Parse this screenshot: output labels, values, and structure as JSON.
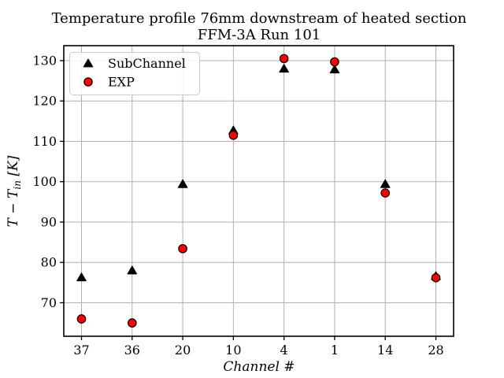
{
  "chart_data": {
    "type": "scatter",
    "title": "Temperature profile 76mm downstream of heated section",
    "subtitle": "FFM-3A Run 101",
    "xlabel": "Channel #",
    "ylabel": "T − T_in [K]",
    "ylabel_parts": {
      "main": "T − T",
      "sub": "in",
      "unit": " [K]"
    },
    "categories": [
      "37",
      "36",
      "20",
      "10",
      "4",
      "1",
      "14",
      "28"
    ],
    "series": [
      {
        "name": "SubChannel",
        "marker": "triangle",
        "fill_color": "#000000",
        "edge_color": "#000000",
        "values": [
          76.3,
          78.0,
          99.4,
          112.7,
          128.0,
          127.8,
          99.4,
          76.6
        ]
      },
      {
        "name": "EXP",
        "marker": "circle",
        "fill_color": "#ff0000",
        "edge_color": "#000000",
        "values": [
          66.0,
          65.0,
          83.4,
          111.5,
          130.5,
          129.7,
          97.2,
          76.2
        ]
      }
    ],
    "yticks": [
      70,
      80,
      90,
      100,
      110,
      120,
      130
    ],
    "ylim": [
      61.7,
      133.7
    ],
    "grid": true,
    "grid_color": "#b0b0b0",
    "spine_color": "#000000",
    "legend_position": "upper-left",
    "legend_border_color": "#cccccc",
    "background_color": "#ffffff"
  }
}
